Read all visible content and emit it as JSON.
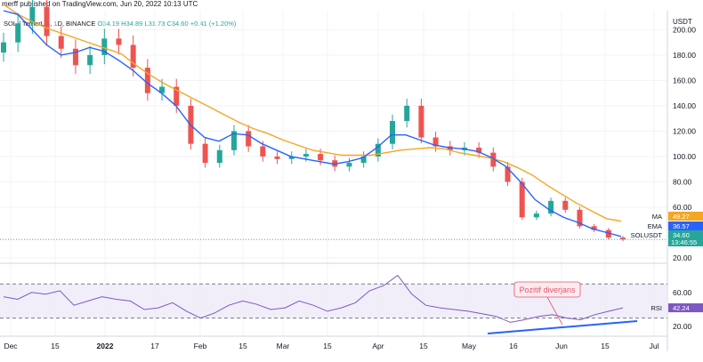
{
  "header": {
    "byline": "merff published on TradingView.com, Jun 20, 2022 10:13 UTC",
    "symbol": "SOL / TetherUS, 1D, BINANCE",
    "ohlc": "O34.19 H34.89 L31.73 C34.60 +0.41 (+1.20%)",
    "unit": "USDT"
  },
  "chart_data": {
    "type": "candlestick",
    "x_labels": [
      "Dec",
      "15",
      "2022",
      "17",
      "Feb",
      "15",
      "Mar",
      "15",
      "Apr",
      "15",
      "May",
      "16",
      "Jun",
      "15",
      "Jul"
    ],
    "price_axis": {
      "ticks": [
        "200.00",
        "180.00",
        "160.00",
        "140.00",
        "120.00",
        "100.00",
        "80.00",
        "60.00",
        "20.00"
      ],
      "ylim": [
        20,
        215
      ]
    },
    "series": [
      {
        "name": "MA",
        "color": "#f5a623",
        "last": "49.27",
        "values": [
          220,
          212,
          206,
          201,
          197,
          193,
          189,
          185,
          181,
          172,
          164,
          157,
          151,
          145,
          139,
          133,
          127,
          122,
          118,
          113,
          109,
          105,
          103,
          101,
          101,
          101,
          103,
          105,
          106,
          107,
          106,
          103,
          101,
          99,
          96,
          91,
          85,
          77,
          70,
          63,
          57,
          51,
          49
        ]
      },
      {
        "name": "EMA",
        "color": "#2962ff",
        "last": "36.57",
        "values": [
          215,
          212,
          200,
          188,
          180,
          182,
          186,
          183,
          176,
          168,
          158,
          150,
          140,
          125,
          115,
          112,
          118,
          117,
          110,
          105,
          100,
          98,
          96,
          94,
          96,
          99,
          107,
          117,
          117,
          113,
          109,
          107,
          106,
          104,
          99,
          92,
          80,
          66,
          58,
          52,
          48,
          43,
          40,
          37
        ]
      },
      {
        "name": "SOLUSDT",
        "color": "#26a69a",
        "last": "34.60",
        "time": "13:46:55",
        "close": [
          190,
          205,
          218,
          195,
          185,
          172,
          180,
          193,
          188,
          170,
          150,
          155,
          140,
          110,
          95,
          105,
          120,
          108,
          100,
          98,
          100,
          102,
          97,
          92,
          95,
          100,
          110,
          128,
          140,
          115,
          108,
          105,
          107,
          103,
          92,
          80,
          52,
          55,
          65,
          58,
          45,
          42,
          36,
          34.6
        ]
      }
    ],
    "rsi": {
      "name": "RSI",
      "value": "42.24",
      "upper": 70,
      "lower": 30,
      "values": [
        55,
        52,
        60,
        58,
        62,
        45,
        50,
        55,
        52,
        50,
        40,
        42,
        48,
        38,
        30,
        36,
        45,
        50,
        46,
        40,
        42,
        50,
        45,
        38,
        42,
        48,
        62,
        68,
        80,
        58,
        45,
        42,
        40,
        38,
        35,
        32,
        25,
        28,
        32,
        34,
        30,
        28,
        34,
        38,
        42
      ]
    },
    "annotation": "Pozitif diverjans"
  }
}
